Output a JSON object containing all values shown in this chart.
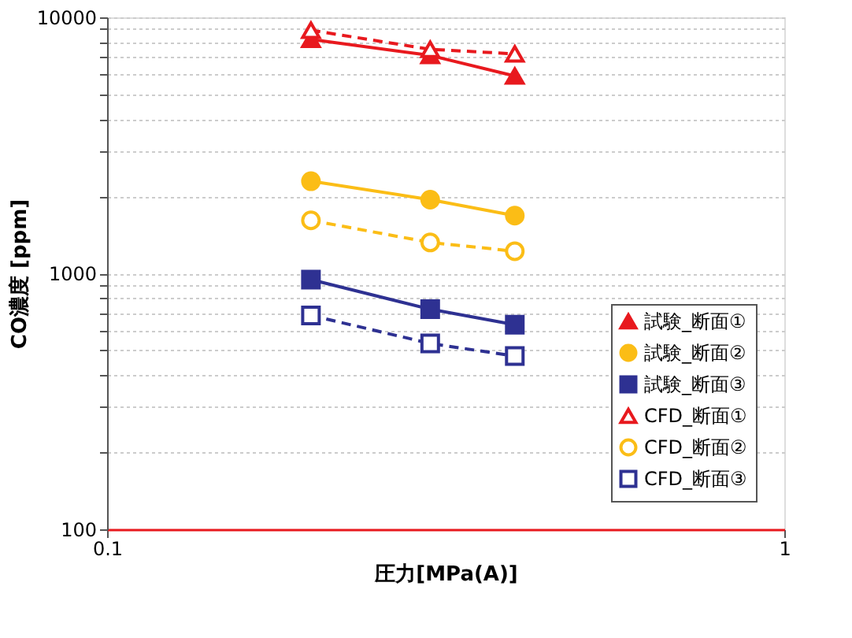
{
  "chart_data": {
    "type": "line",
    "xlabel": "圧力[MPa(A)]",
    "ylabel": "CO濃度 [ppm]",
    "x": [
      0.2,
      0.3,
      0.4
    ],
    "series": [
      {
        "name": "試験_断面①",
        "color": "#e8191e",
        "marker": "triangle",
        "line_style": "solid",
        "values": [
          8200,
          7100,
          5900
        ]
      },
      {
        "name": "試験_断面②",
        "color": "#fbbd16",
        "marker": "circle",
        "line_style": "solid",
        "values": [
          2290,
          1940,
          1680
        ]
      },
      {
        "name": "試験_断面③",
        "color": "#2e3192",
        "marker": "square",
        "line_style": "solid",
        "values": [
          945,
          724,
          630
        ]
      },
      {
        "name": "CFD_断面①",
        "color": "#e8191e",
        "marker": "triangle",
        "line_style": "dashed",
        "values": [
          8900,
          7500,
          7200
        ]
      },
      {
        "name": "CFD_断面②",
        "color": "#fbbd16",
        "marker": "circle",
        "line_style": "dashed",
        "values": [
          1610,
          1320,
          1220
        ]
      },
      {
        "name": "CFD_断面③",
        "color": "#2e3192",
        "marker": "square",
        "line_style": "dashed",
        "values": [
          685,
          532,
          475
        ]
      }
    ],
    "log": "xy",
    "xlim": [
      0.1,
      1
    ],
    "xticks": [
      0.1,
      1
    ],
    "ylim": [
      100,
      10000
    ],
    "yticks": [
      100,
      {
        "value": 200,
        "label": null
      },
      {
        "value": 300,
        "label": null
      },
      {
        "value": 400,
        "label": null
      },
      {
        "value": 500,
        "label": null
      },
      {
        "value": 600,
        "label": null
      },
      {
        "value": 700,
        "label": null
      },
      {
        "value": 800,
        "label": null
      },
      {
        "value": 900,
        "label": null
      },
      1000,
      {
        "value": 2000,
        "label": null
      },
      {
        "value": 3000,
        "label": null
      },
      {
        "value": 4000,
        "label": null
      },
      {
        "value": 5000,
        "label": null
      },
      {
        "value": 6000,
        "label": null
      },
      {
        "value": 7000,
        "label": null
      },
      {
        "value": 8000,
        "label": null
      },
      {
        "value": 9000,
        "label": null
      },
      10000
    ],
    "grid": "y",
    "legend": "bottom right"
  }
}
